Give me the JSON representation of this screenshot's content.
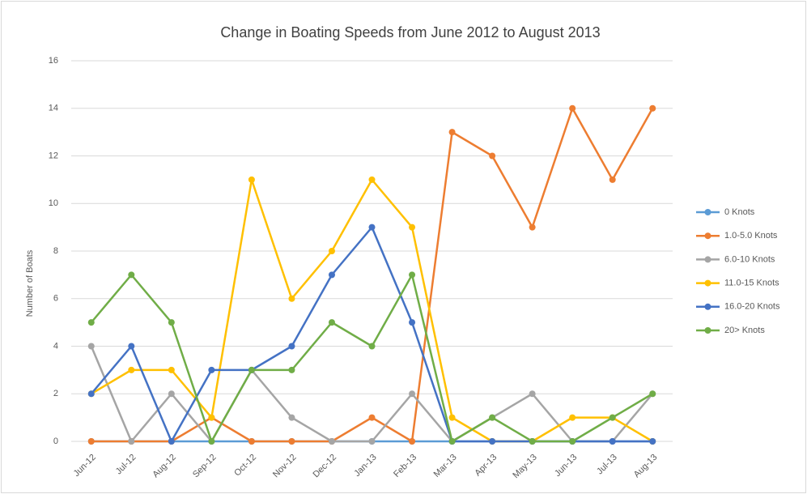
{
  "chart_data": {
    "type": "line",
    "title": "Change in Boating Speeds from June 2012 to August 2013",
    "y_label": "Number of Boats",
    "categories": [
      "Jun-12",
      "Jul-12",
      "Aug-12",
      "Sep-12",
      "Oct-12",
      "Nov-12",
      "Dec-12",
      "Jan-13",
      "Feb-13",
      "Mar-13",
      "Apr-13",
      "May-13",
      "Jun-13",
      "Jul-13",
      "Aug-13"
    ],
    "series": [
      {
        "name": "0 Knots",
        "color": "#5b9bd5",
        "values": [
          0,
          0,
          0,
          0,
          0,
          0,
          0,
          0,
          0,
          0,
          0,
          0,
          0,
          0,
          0
        ]
      },
      {
        "name": "1.0-5.0 Knots",
        "color": "#ed7d31",
        "values": [
          0,
          0,
          0,
          1,
          0,
          0,
          0,
          1,
          0,
          13,
          12,
          9,
          14,
          11,
          14
        ]
      },
      {
        "name": "6.0-10 Knots",
        "color": "#a5a5a5",
        "values": [
          4,
          0,
          2,
          0,
          3,
          1,
          0,
          0,
          2,
          0,
          1,
          2,
          0,
          0,
          2
        ]
      },
      {
        "name": "11.0-15 Knots",
        "color": "#ffc000",
        "values": [
          2,
          3,
          3,
          1,
          11,
          6,
          8,
          11,
          9,
          1,
          0,
          0,
          1,
          1,
          0
        ]
      },
      {
        "name": "16.0-20 Knots",
        "color": "#4472c4",
        "values": [
          2,
          4,
          0,
          3,
          3,
          4,
          7,
          9,
          5,
          0,
          0,
          0,
          0,
          0,
          0
        ]
      },
      {
        "name": "20> Knots",
        "color": "#70ad47",
        "values": [
          5,
          7,
          5,
          0,
          3,
          3,
          5,
          4,
          7,
          0,
          1,
          0,
          0,
          1,
          2
        ]
      }
    ],
    "ylim": [
      0,
      16
    ],
    "yticks": [
      0,
      2,
      4,
      6,
      8,
      10,
      12,
      14,
      16
    ],
    "grid": true,
    "legend": "right"
  }
}
